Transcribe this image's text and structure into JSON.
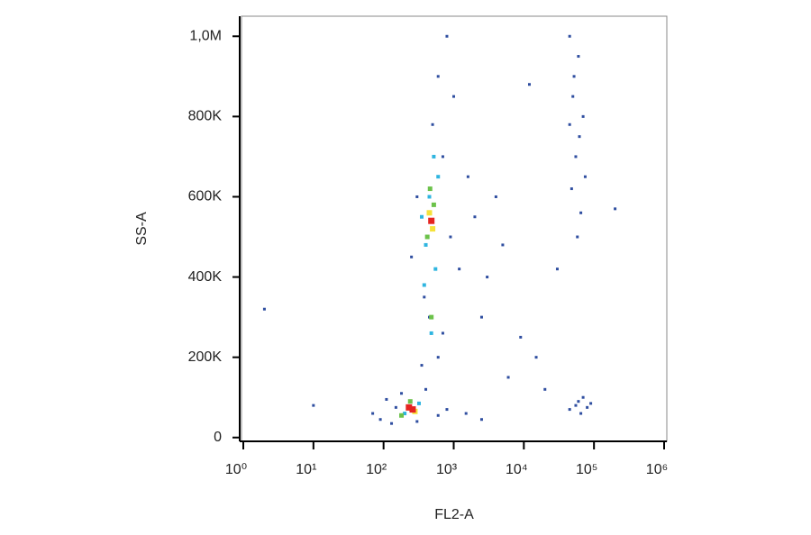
{
  "chart_data": {
    "type": "scatter",
    "x_label": "FL2-A",
    "y_label": "SS-A",
    "xscale": "log",
    "xlim": [
      1,
      1000000
    ],
    "xticks": [
      {
        "value": 1,
        "label": "10⁰"
      },
      {
        "value": 10,
        "label": "10¹"
      },
      {
        "value": 100,
        "label": "10²"
      },
      {
        "value": 1000,
        "label": "10³"
      },
      {
        "value": 10000,
        "label": "10⁴"
      },
      {
        "value": 100000,
        "label": "10⁵"
      },
      {
        "value": 1000000,
        "label": "10⁶"
      }
    ],
    "ylim": [
      -5000,
      1050000
    ],
    "yticks": [
      0,
      {
        "value": 200000,
        "label": "200K"
      },
      {
        "value": 400000,
        "label": "400K"
      },
      {
        "value": 600000,
        "label": "600K"
      },
      {
        "value": 800000,
        "label": "800K"
      },
      {
        "value": 1000000,
        "label": "1,0M"
      }
    ],
    "series": [
      {
        "color": "#2f4ea0",
        "x": [
          70,
          90,
          110,
          130,
          180,
          300,
          600,
          800,
          400,
          150,
          1500,
          2500,
          350,
          600,
          450,
          700,
          380,
          250,
          300,
          900,
          1200,
          700,
          500,
          600,
          800,
          2000,
          3000,
          4000,
          1600,
          2500,
          5000,
          1000,
          9000,
          15000,
          6000,
          20000,
          12000,
          30000,
          2,
          10,
          200000,
          45000,
          60000,
          50000,
          70000,
          55000,
          48000,
          65000,
          58000,
          52000,
          62000,
          75000,
          45000,
          45000,
          60000,
          80000,
          70000,
          55000,
          90000,
          65000
        ],
        "values": [
          60000,
          45000,
          95000,
          35000,
          110000,
          40000,
          55000,
          70000,
          120000,
          75000,
          60000,
          45000,
          180000,
          200000,
          300000,
          260000,
          350000,
          450000,
          600000,
          500000,
          420000,
          700000,
          780000,
          900000,
          1000000,
          550000,
          400000,
          600000,
          650000,
          300000,
          480000,
          850000,
          250000,
          200000,
          150000,
          120000,
          880000,
          420000,
          320000,
          80000,
          570000,
          1000000,
          950000,
          850000,
          800000,
          700000,
          620000,
          560000,
          500000,
          900000,
          750000,
          650000,
          780000,
          70000,
          90000,
          75000,
          100000,
          80000,
          85000,
          60000
        ]
      },
      {
        "color": "#2fb5e0",
        "x": [
          200,
          320,
          450,
          600,
          400,
          550,
          480,
          520,
          380,
          350
        ],
        "values": [
          60000,
          85000,
          600000,
          650000,
          480000,
          420000,
          260000,
          700000,
          380000,
          550000
        ]
      },
      {
        "color": "#6cc24a",
        "x": [
          240,
          180,
          420,
          520,
          460,
          480
        ],
        "values": [
          90000,
          55000,
          500000,
          580000,
          620000,
          300000
        ]
      },
      {
        "color": "#f5e23a",
        "x": [
          280,
          450,
          500
        ],
        "values": [
          65000,
          560000,
          520000
        ]
      },
      {
        "color": "#e52420",
        "x": [
          230,
          260,
          480
        ],
        "values": [
          75000,
          70000,
          540000
        ]
      }
    ]
  }
}
